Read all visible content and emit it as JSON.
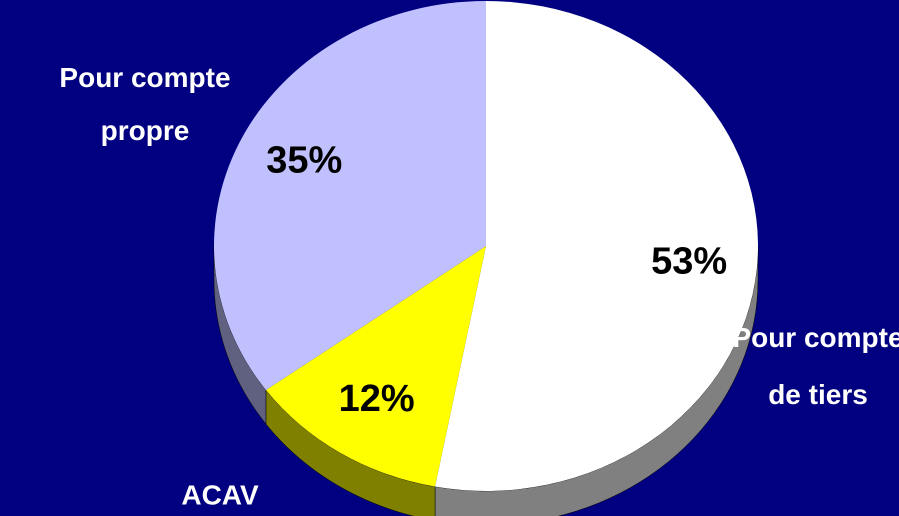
{
  "chart_data": {
    "type": "pie",
    "categories": [
      "Pour compte\nde tiers",
      "ACAV",
      "Pour compte\npropre"
    ],
    "values": [
      53,
      12,
      35
    ],
    "value_labels": [
      "53%",
      "12%",
      "35%"
    ],
    "colors": [
      "#ffffff",
      "#ffff00",
      "#c0c0ff"
    ]
  }
}
